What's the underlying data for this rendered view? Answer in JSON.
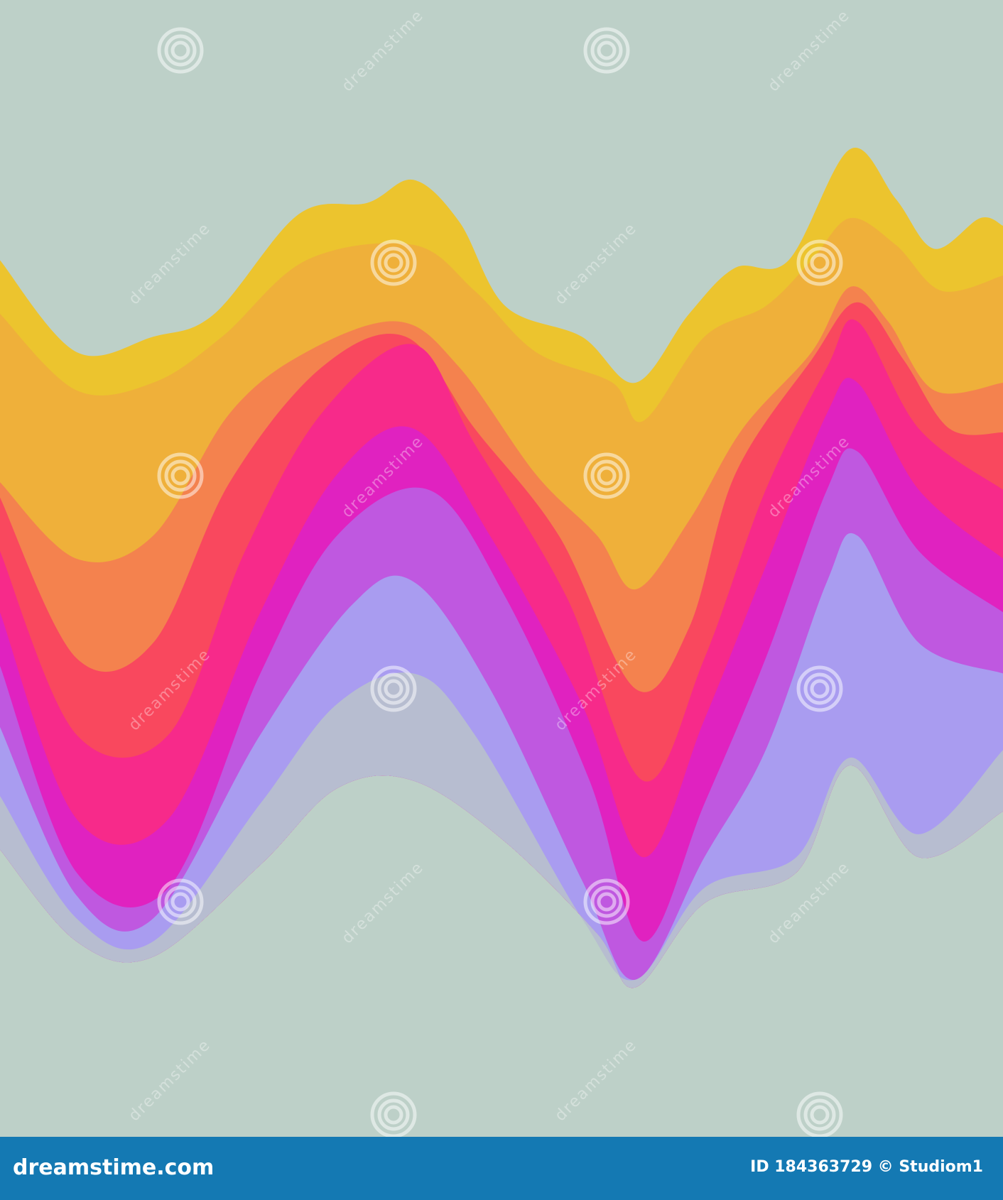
{
  "watermark": "dreamstime",
  "footer": {
    "logo": "dreamstime.com",
    "credit": "ID 184363729 © Studiom1"
  }
}
